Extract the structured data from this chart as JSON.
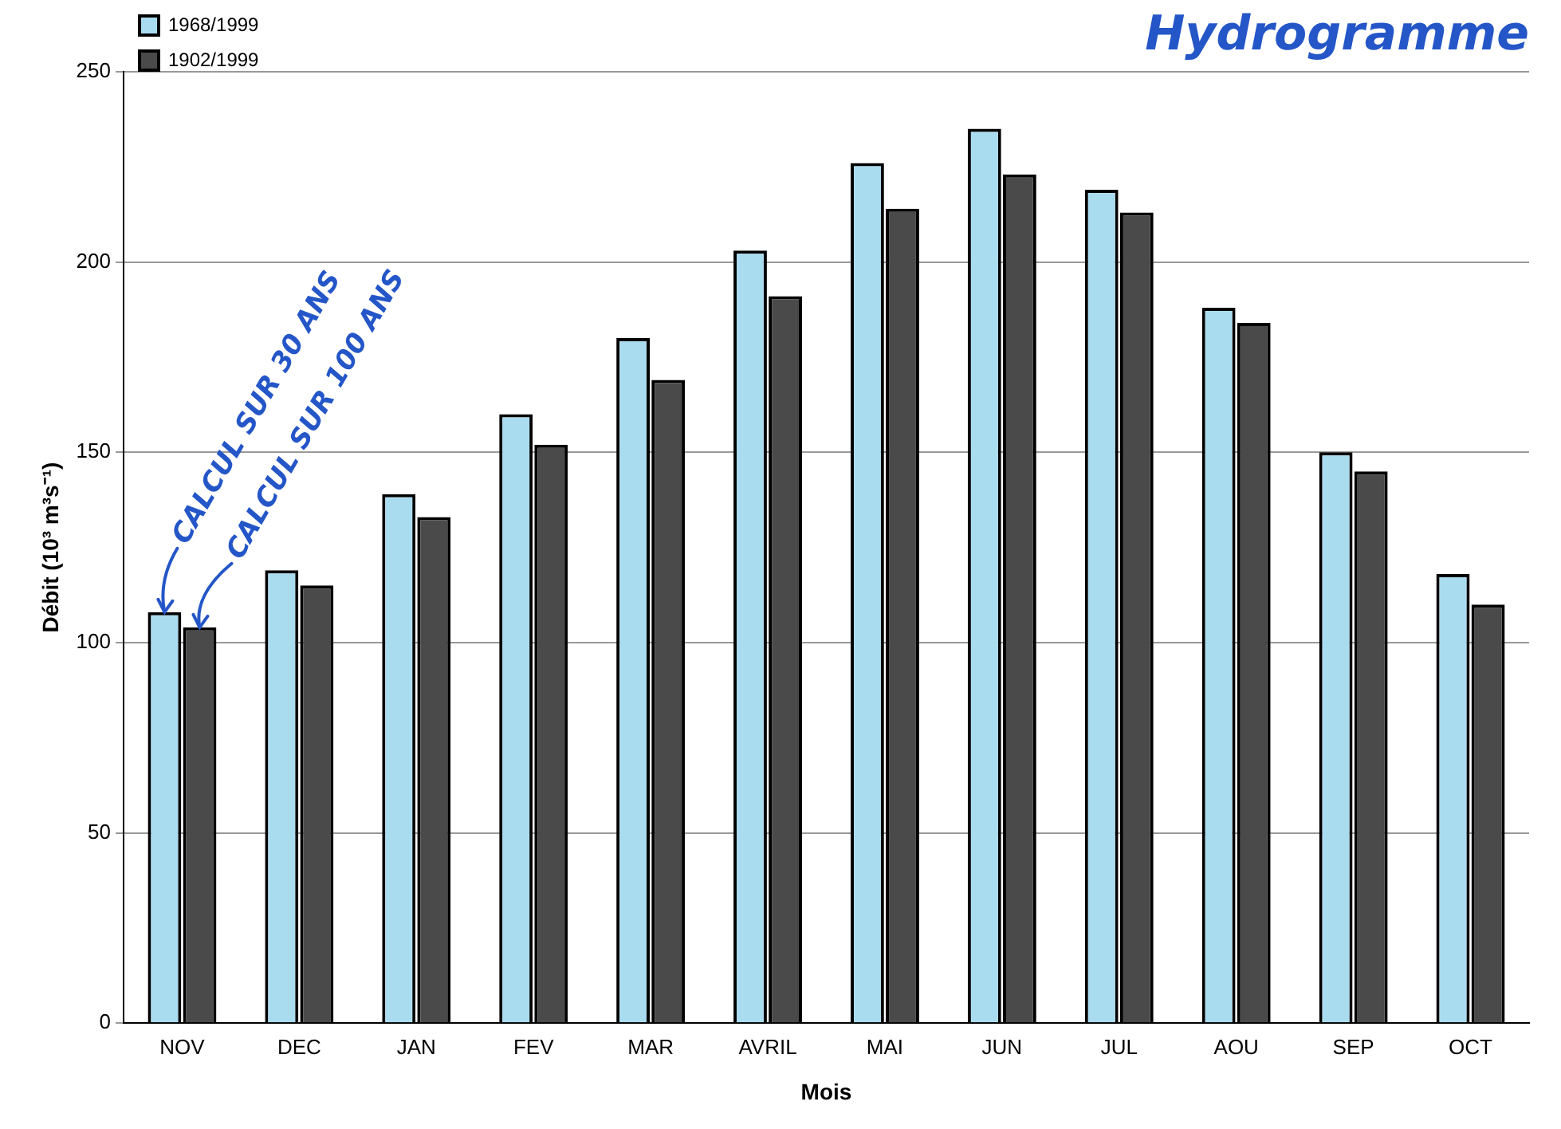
{
  "chart_data": {
    "type": "bar",
    "title": "Hydrogramme",
    "xlabel": "Mois",
    "ylabel": "Débit (10³ m³s⁻¹)",
    "categories": [
      "NOV",
      "DEC",
      "JAN",
      "FEV",
      "MAR",
      "AVRIL",
      "MAI",
      "JUN",
      "JUL",
      "AOU",
      "SEP",
      "OCT"
    ],
    "series": [
      {
        "name": "1968/1999",
        "color": "#aadcf0",
        "values": [
          108,
          119,
          139,
          160,
          180,
          203,
          226,
          235,
          219,
          188,
          150,
          118
        ]
      },
      {
        "name": "1902/1999",
        "color": "#4a4a4a",
        "values": [
          104,
          115,
          133,
          152,
          169,
          191,
          214,
          223,
          213,
          184,
          145,
          110
        ]
      }
    ],
    "ylim": [
      0,
      250
    ],
    "yticks": [
      0,
      50,
      100,
      150,
      200,
      250
    ],
    "grid": "y",
    "legend": "top left",
    "annotations": [
      {
        "text": "CALCUL SUR 30 ANS",
        "x": "NOV",
        "y": 108
      },
      {
        "text": "CALCUL SUR 100 ANS",
        "x": "NOV",
        "y": 104
      }
    ]
  }
}
